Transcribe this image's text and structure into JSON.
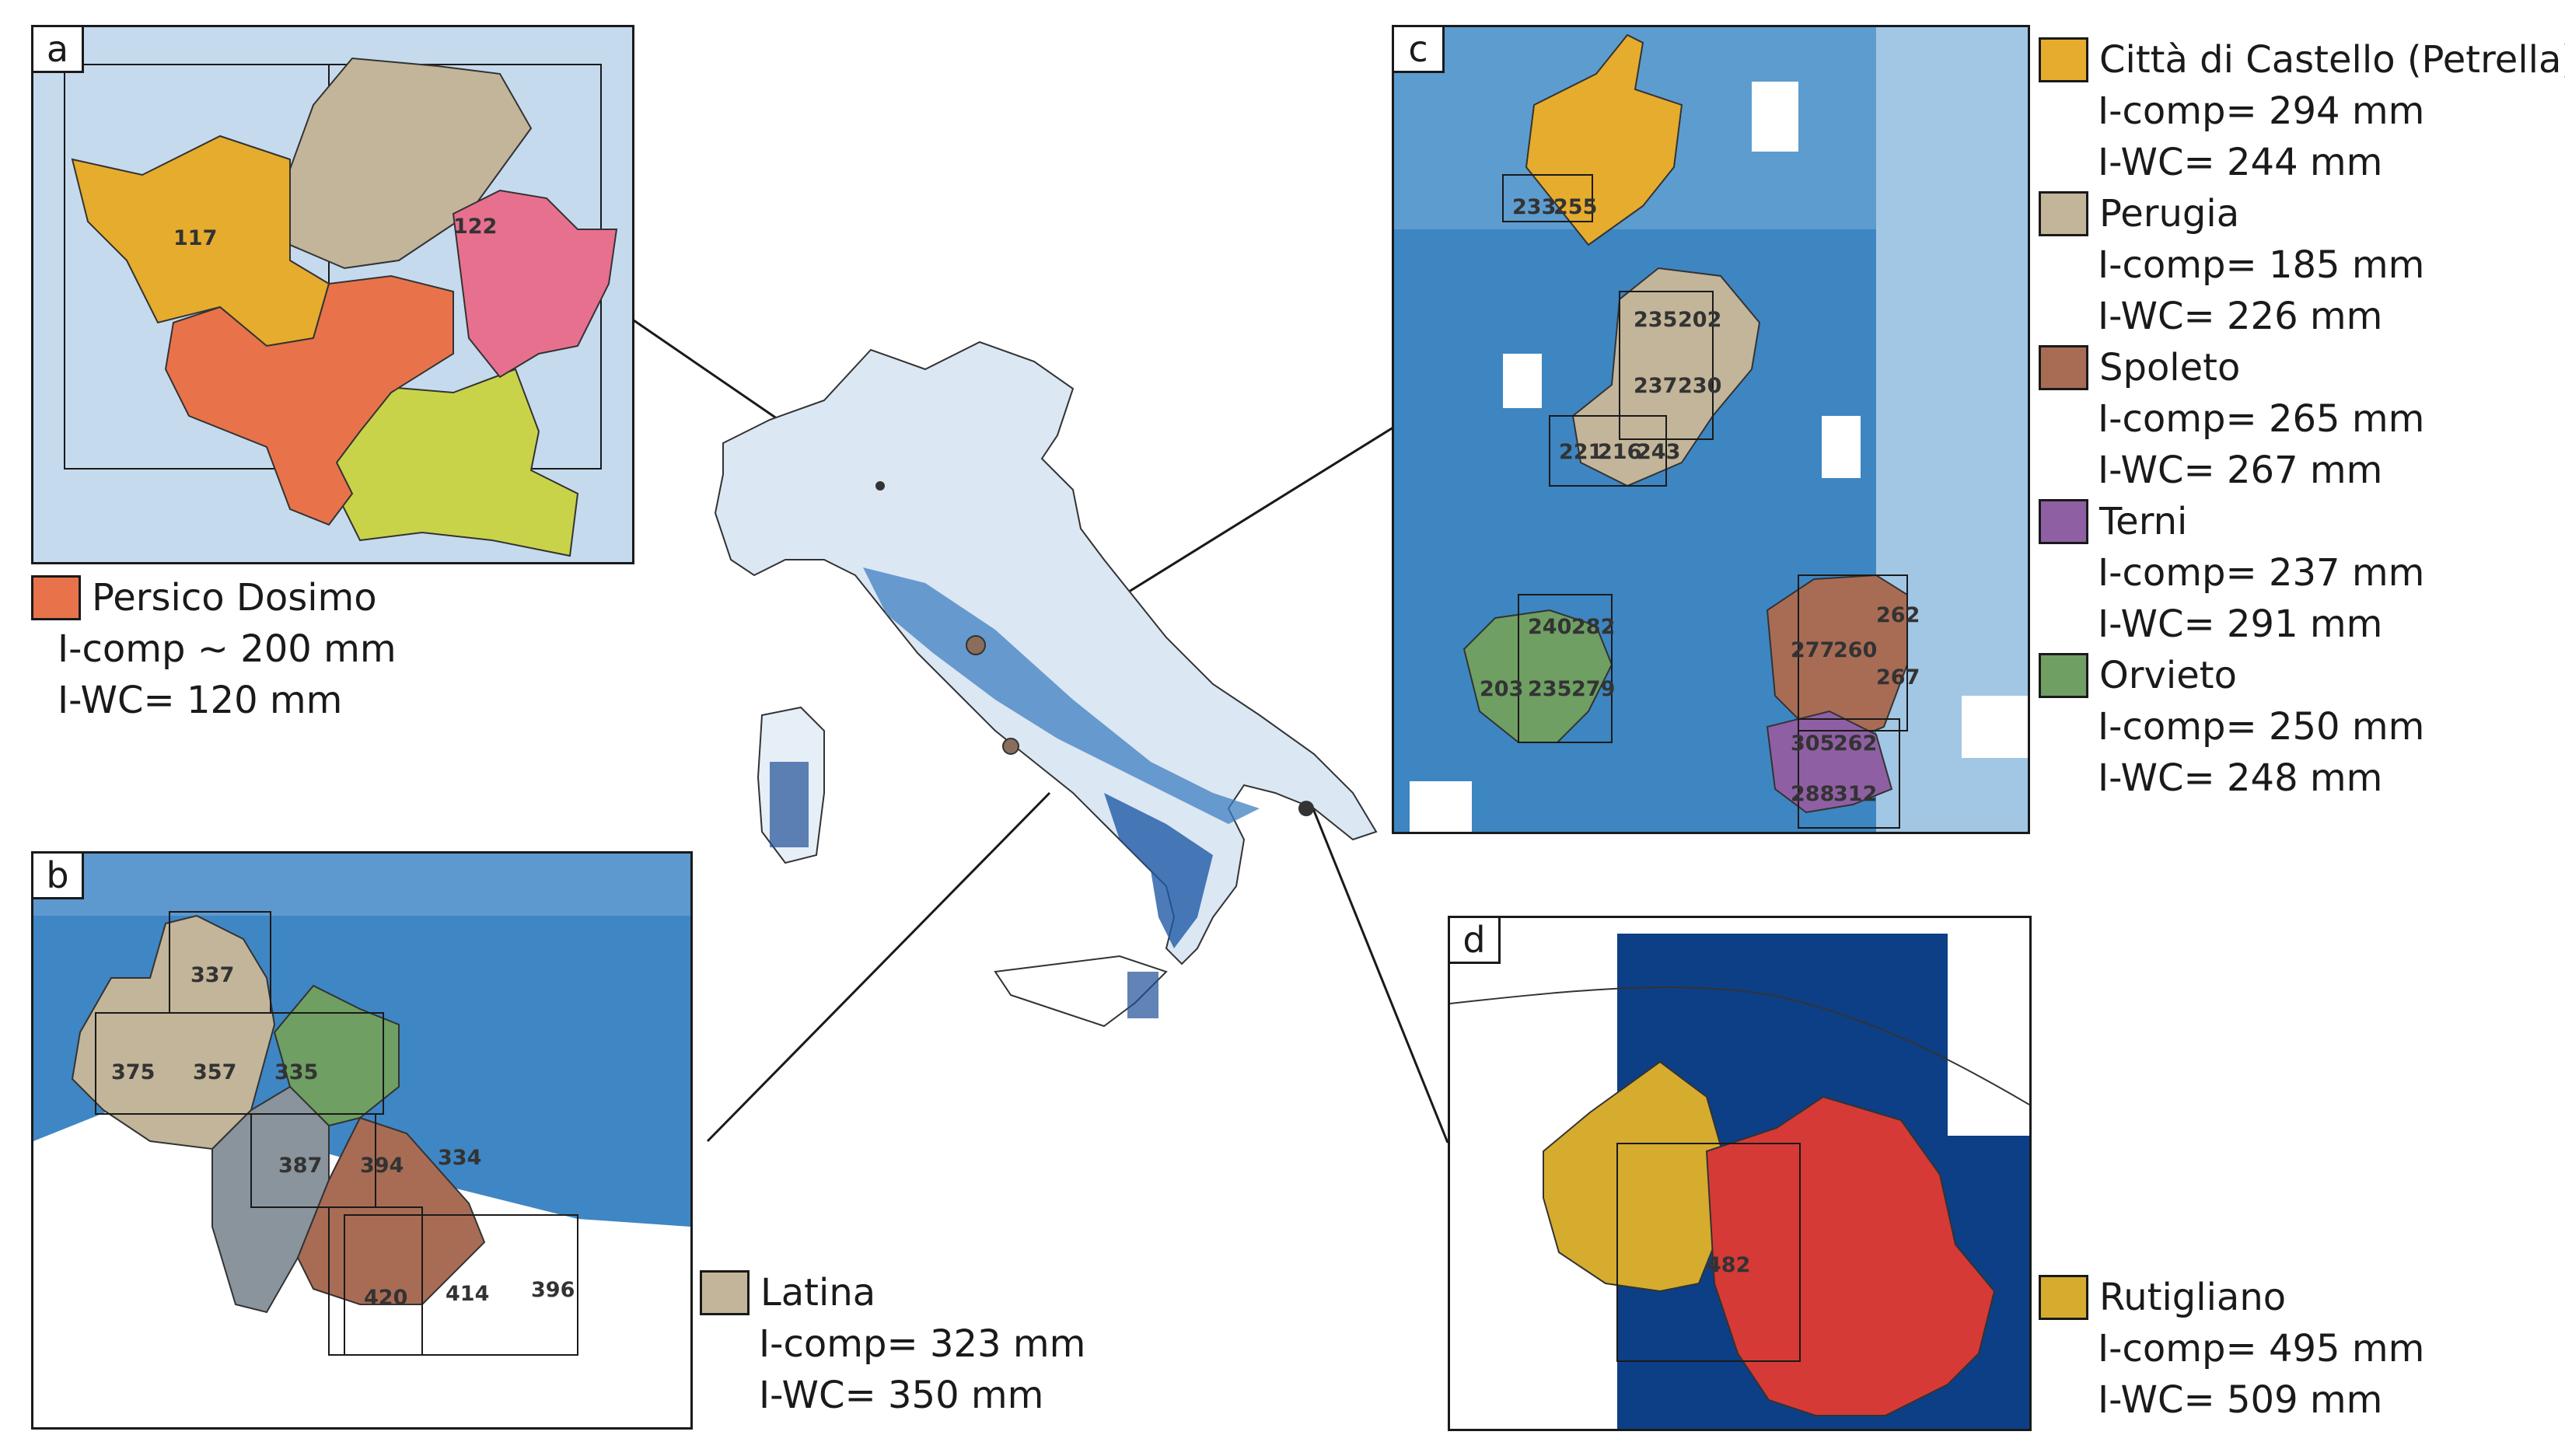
{
  "panels": {
    "a": {
      "label": "a",
      "cell_values": [
        "117",
        "122"
      ],
      "legend": {
        "name": "Persico Dosimo",
        "icomp": "I-comp ~ 200  mm",
        "iwc": "I-WC= 120 mm",
        "color": "#e8734a"
      }
    },
    "b": {
      "label": "b",
      "cell_values": [
        "337",
        "375",
        "357",
        "335",
        "387",
        "394",
        "334",
        "420",
        "414",
        "396"
      ],
      "legend": {
        "name": "Latina",
        "icomp": "I-comp= 323 mm",
        "iwc": "I-WC= 350 mm",
        "color": "#c2b59a"
      }
    },
    "c": {
      "label": "c",
      "cell_values": [
        "233",
        "255",
        "235",
        "202",
        "237",
        "230",
        "221",
        "216",
        "243",
        "240",
        "282",
        "203",
        "235",
        "279",
        "277",
        "260",
        "262",
        "267",
        "305",
        "262",
        "288",
        "312"
      ],
      "legend": [
        {
          "name": "Città di Castello (Petrella)",
          "icomp": "I-comp= 294 mm",
          "iwc": "I-WC= 244 mm",
          "color": "#e6ac2e"
        },
        {
          "name": "Perugia",
          "icomp": "I-comp= 185 mm",
          "iwc": "I-WC= 226 mm",
          "color": "#c2b59a"
        },
        {
          "name": "Spoleto",
          "icomp": "I-comp= 265 mm",
          "iwc": "I-WC= 267 mm",
          "color": "#a86c55"
        },
        {
          "name": "Terni",
          "icomp": "I-comp= 237 mm",
          "iwc": "I-WC= 291 mm",
          "color": "#8f5fa3"
        },
        {
          "name": "Orvieto",
          "icomp": "I-comp= 250 mm",
          "iwc": "I-WC= 248 mm",
          "color": "#6f9f63"
        }
      ]
    },
    "d": {
      "label": "d",
      "cell_values": [
        "482"
      ],
      "legend": {
        "name": "Rutigliano",
        "icomp": "I-comp= 495 mm",
        "iwc": "I-WC= 509 mm",
        "color": "#d6ac2e"
      }
    }
  }
}
